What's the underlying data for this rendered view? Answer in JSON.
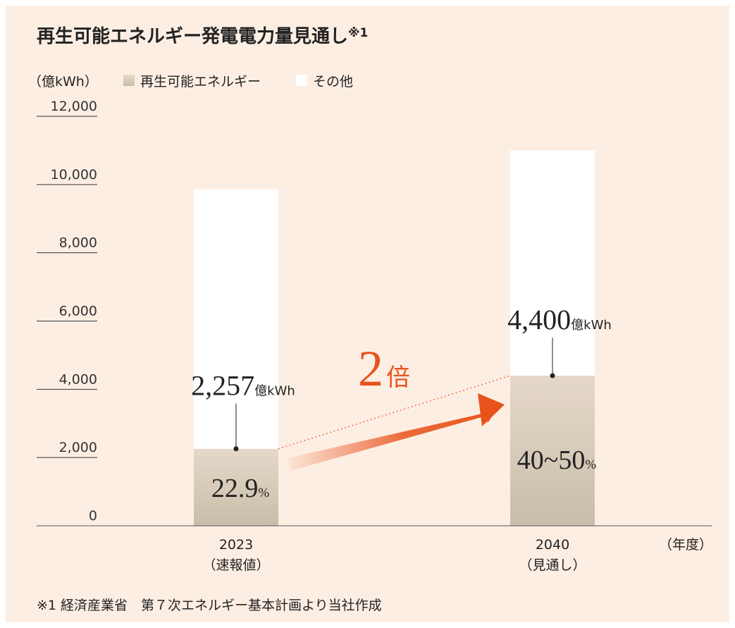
{
  "chart_data": {
    "type": "stacked_bar",
    "title": "再生可能エネルギー発電電力量見通し",
    "title_note": "※1",
    "y_label": "（億kWh）",
    "x_label": "（年度）",
    "categories": [
      "2023",
      "2040"
    ],
    "category_notes": [
      "（速報値）",
      "（見通し）"
    ],
    "series": [
      {
        "name": "再生可能エネルギー",
        "color": "#c8bda9",
        "values": [
          2257,
          4400
        ],
        "value_labels": [
          "2,257",
          "4,400"
        ],
        "value_unit": "億kWh",
        "share_labels": [
          "22.9",
          "40~50"
        ],
        "share_unit": "%"
      },
      {
        "name": "その他",
        "color": "#ffffff",
        "values": [
          7600,
          6600
        ]
      }
    ],
    "ylim": [
      0,
      12000
    ],
    "yticks": [
      0,
      {
        "value": 2000,
        "label": "2,000"
      },
      {
        "value": 4000,
        "label": "4,000"
      },
      {
        "value": 6000,
        "label": "6,000"
      },
      {
        "value": 8000,
        "label": "8,000"
      },
      {
        "value": 10000,
        "label": "10,000"
      },
      {
        "value": 12000,
        "label": "12,000"
      }
    ],
    "annotation": {
      "number": "2",
      "text": "倍",
      "color": "#e8531c"
    },
    "footnote": "※1 経済産業省　第７次エネルギー基本計画より当社作成"
  }
}
